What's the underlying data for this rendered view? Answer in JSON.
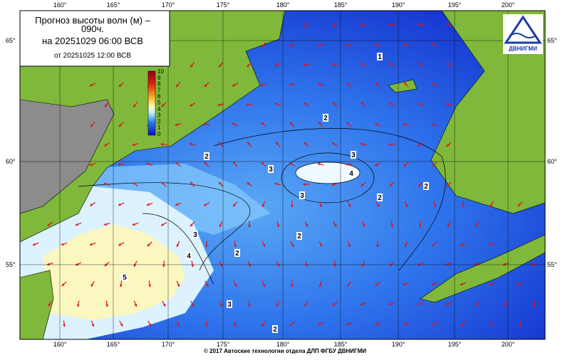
{
  "header": {
    "title_line1": "Прогноз высоты волн (м) –",
    "title_line2": "090ч.",
    "forecast_time": "на 20251029 06:00 ВСВ",
    "base_time": "от 20251025 12:00 ВСВ"
  },
  "colorbar": {
    "labels": [
      "10",
      "9",
      "8",
      "7",
      "6",
      "5",
      "4",
      "3",
      "2",
      "1",
      "0"
    ]
  },
  "longitude_labels": [
    "160°",
    "165°",
    "170°",
    "175°",
    "180°",
    "185°",
    "190°",
    "195°",
    "200°"
  ],
  "latitude_labels": [
    "65°",
    "60°",
    "55°"
  ],
  "contour_labels": [
    "1",
    "2",
    "2",
    "3",
    "3",
    "4",
    "3",
    "2",
    "2",
    "2",
    "2",
    "3",
    "4",
    "5",
    "3",
    "2"
  ],
  "logo": "ДВНИГМИ",
  "footer": "© 2017 Автоские технологии отдела ДЛП ФГБУ ДВНИГМИ"
}
